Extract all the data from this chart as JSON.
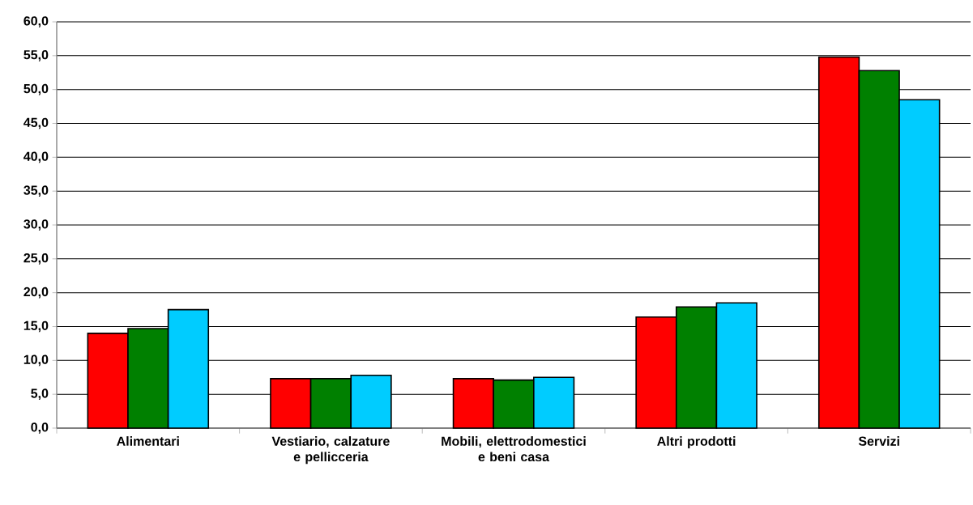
{
  "chart_data": {
    "type": "bar",
    "categories": [
      "Alimentari",
      "Vestiario, calzature e pellicceria",
      "Mobili, elettrodomestici e beni casa",
      "Altri prodotti",
      "Servizi"
    ],
    "series": [
      {
        "color": "#ff0000",
        "values": [
          14.0,
          7.3,
          7.3,
          16.4,
          54.8
        ]
      },
      {
        "color": "#008000",
        "values": [
          14.7,
          7.3,
          7.1,
          17.9,
          52.8
        ]
      },
      {
        "color": "#00ccff",
        "values": [
          17.5,
          7.8,
          7.5,
          18.5,
          48.5
        ]
      }
    ],
    "ylim": [
      0,
      60
    ],
    "yticks": [
      {
        "value": 0,
        "label": "0,0"
      },
      {
        "value": 5,
        "label": "5,0"
      },
      {
        "value": 10,
        "label": "10,0"
      },
      {
        "value": 15,
        "label": "15,0"
      },
      {
        "value": 20,
        "label": "20,0"
      },
      {
        "value": 25,
        "label": "25,0"
      },
      {
        "value": 30,
        "label": "30,0"
      },
      {
        "value": 35,
        "label": "35,0"
      },
      {
        "value": 40,
        "label": "40,0"
      },
      {
        "value": 45,
        "label": "45,0"
      },
      {
        "value": 50,
        "label": "50,0"
      },
      {
        "value": 55,
        "label": "55,0"
      },
      {
        "value": 60,
        "label": "60,0"
      }
    ],
    "grid": "y"
  }
}
